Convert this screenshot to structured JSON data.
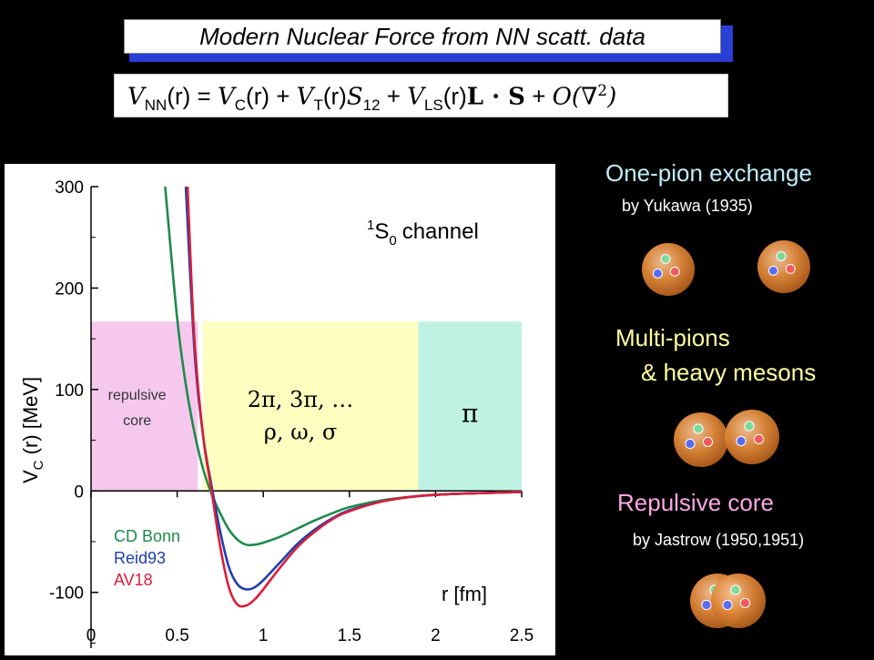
{
  "title": "Modern Nuclear Force from NN scatt. data",
  "equation": {
    "lhs": "V",
    "lhs_sub": "NN",
    "arg": "(r)",
    "eq": " = ",
    "vc": "V",
    "vc_sub": "C",
    "vt": "V",
    "vt_sub": "T",
    "s12": "S",
    "s12_sub": "12",
    "vls": "V",
    "vls_sub": "LS",
    "ldots": "L · S",
    "plus": " + ",
    "order": "O(∇",
    "order_sup": "2",
    "order_close": ")"
  },
  "chart_data": {
    "type": "line",
    "xlabel": "r [fm]",
    "ylabel": "V",
    "ylabel_sub": "C",
    "ylabel_rest": " (r) [MeV]",
    "xlim": [
      0,
      2.5
    ],
    "ylim": [
      -155,
      300
    ],
    "x_ticks": [
      "0",
      "0.5",
      "1",
      "1.5",
      "2",
      "2.5"
    ],
    "y_ticks": [
      "300",
      "200",
      "100",
      "0",
      "-100"
    ],
    "channel_label": "S",
    "channel_sup": "1",
    "channel_sub": "0",
    "channel_word": "channel",
    "regions": [
      {
        "label": "repulsive",
        "label2": "core",
        "x0": 0.0,
        "x1": 0.62,
        "color": "#f6c8ee"
      },
      {
        "label": "2π, 3π, …",
        "label2": "ρ, ω, σ",
        "x0": 0.65,
        "x1": 1.9,
        "color": "#fefec0"
      },
      {
        "label": "π",
        "label2": "",
        "x0": 1.9,
        "x1": 2.5,
        "color": "#bff2e2"
      }
    ],
    "region_top": 167,
    "series": [
      {
        "name": "CD Bonn",
        "color": "#1e8a4a",
        "x": [
          0.43,
          0.5,
          0.55,
          0.6,
          0.65,
          0.7,
          0.75,
          0.8,
          0.85,
          0.9,
          0.95,
          1.0,
          1.1,
          1.2,
          1.3,
          1.4,
          1.5,
          1.7,
          1.9,
          2.1,
          2.3,
          2.5
        ],
        "y": [
          300,
          170,
          105,
          58,
          22,
          -3,
          -22,
          -38,
          -48,
          -53,
          -53,
          -51,
          -45,
          -37,
          -29,
          -22,
          -16,
          -9,
          -5,
          -3,
          -2,
          -1
        ]
      },
      {
        "name": "Reid93",
        "color": "#1f3fae",
        "x": [
          0.55,
          0.6,
          0.65,
          0.7,
          0.75,
          0.8,
          0.85,
          0.9,
          0.95,
          1.0,
          1.1,
          1.2,
          1.3,
          1.4,
          1.5,
          1.7,
          1.9,
          2.1,
          2.3,
          2.5
        ],
        "y": [
          300,
          140,
          55,
          5,
          -40,
          -75,
          -92,
          -97,
          -95,
          -88,
          -70,
          -52,
          -38,
          -27,
          -19,
          -10,
          -5,
          -3,
          -2,
          -1
        ]
      },
      {
        "name": "AV18",
        "color": "#d81e3a",
        "x": [
          0.56,
          0.6,
          0.65,
          0.7,
          0.75,
          0.8,
          0.85,
          0.9,
          0.95,
          1.0,
          1.1,
          1.2,
          1.3,
          1.4,
          1.5,
          1.7,
          1.9,
          2.1,
          2.3,
          2.5
        ],
        "y": [
          300,
          150,
          55,
          0,
          -55,
          -95,
          -112,
          -113,
          -107,
          -97,
          -75,
          -55,
          -40,
          -28,
          -20,
          -10,
          -5,
          -3,
          -2,
          -1
        ]
      }
    ]
  },
  "side": {
    "one_pion": "One-pion exchange",
    "yukawa": "by Yukawa (1935)",
    "multi_pions": "Multi-pions",
    "heavy_mesons": "& heavy  mesons",
    "repulsive": "Repulsive  core",
    "jastrow": "by Jastrow (1950,1951)",
    "colors": {
      "one_pion": "#bfeefa",
      "multi_pions": "#ffffa0",
      "repulsive": "#f9a8e4",
      "nucleon": "#d9822b"
    }
  }
}
